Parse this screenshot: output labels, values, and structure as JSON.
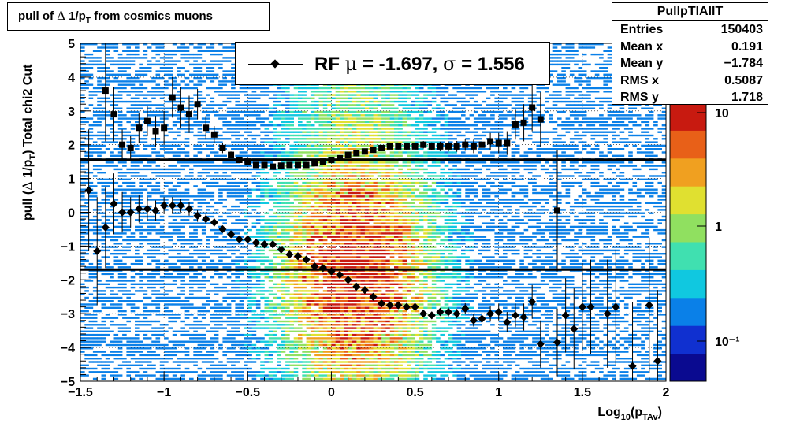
{
  "title": "pull of Δ 1/p_T from cosmics muons",
  "stats": {
    "name": "PullpTIAllT",
    "rows": [
      {
        "label": "Entries",
        "value": "150403"
      },
      {
        "label": "Mean x",
        "value": "0.191"
      },
      {
        "label": "Mean y",
        "value": "−1.784"
      },
      {
        "label": "RMS x",
        "value": "0.5087"
      },
      {
        "label": "RMS y",
        "value": "1.718"
      }
    ]
  },
  "legend": {
    "prefix": "RF",
    "mu_symbol": "μ",
    "mu_text": " = -1.697, ",
    "sigma_symbol": "σ",
    "sigma_text": " =   1.556"
  },
  "colors": {
    "markers": "#000000",
    "palette": [
      "#0a0a90",
      "#1030d0",
      "#0a80e8",
      "#10c8e0",
      "#40e0b0",
      "#90e060",
      "#e0e030",
      "#f0a020",
      "#e86018",
      "#c81a10"
    ]
  },
  "chart_data": {
    "type": "scatter",
    "xlabel": "Log10(pTAv)",
    "ylabel": "pull (Δ 1/pT)  Total chi2 Cut",
    "xlim": [
      -1.5,
      2
    ],
    "ylim": [
      -5,
      5
    ],
    "x_ticks": [
      "−1.5",
      "−1",
      "−0.5",
      "0",
      "0.5",
      "1",
      "1.5",
      "2"
    ],
    "y_ticks": [
      "5",
      "4",
      "3",
      "2",
      "1",
      "0",
      "−1",
      "−2",
      "−3",
      "−4",
      "−5"
    ],
    "grid": true,
    "colorbar_labels": [
      "10",
      "1",
      "10⁻¹"
    ],
    "horizontal_lines": [
      1.556,
      -1.697
    ],
    "series": [
      {
        "marker": "square",
        "x": [
          -1.35,
          -1.3,
          -1.25,
          -1.2,
          -1.15,
          -1.1,
          -1.05,
          -1.0,
          -0.95,
          -0.9,
          -0.85,
          -0.8,
          -0.75,
          -0.7,
          -0.65,
          -0.6,
          -0.55,
          -0.5,
          -0.45,
          -0.4,
          -0.35,
          -0.3,
          -0.25,
          -0.2,
          -0.15,
          -0.1,
          -0.05,
          0.0,
          0.05,
          0.1,
          0.15,
          0.2,
          0.25,
          0.3,
          0.35,
          0.4,
          0.45,
          0.5,
          0.55,
          0.6,
          0.65,
          0.7,
          0.75,
          0.8,
          0.85,
          0.9,
          0.95,
          1.0,
          1.05,
          1.1,
          1.15,
          1.2,
          1.25,
          1.35
        ],
        "y": [
          3.6,
          2.9,
          2.0,
          1.9,
          2.5,
          2.7,
          2.4,
          2.5,
          3.4,
          3.1,
          2.9,
          3.2,
          2.5,
          2.3,
          1.9,
          1.7,
          1.55,
          1.5,
          1.4,
          1.4,
          1.35,
          1.38,
          1.4,
          1.4,
          1.4,
          1.45,
          1.5,
          1.55,
          1.6,
          1.7,
          1.75,
          1.8,
          1.85,
          1.9,
          1.95,
          1.95,
          1.95,
          1.95,
          2.0,
          1.95,
          1.95,
          1.95,
          1.95,
          2.0,
          1.95,
          2.0,
          2.1,
          2.05,
          2.05,
          2.6,
          2.65,
          3.1,
          2.75,
          0.05
        ],
        "yerr": [
          1.5,
          0.8,
          0.45,
          0.35,
          0.45,
          0.45,
          0.45,
          0.5,
          0.6,
          0.6,
          0.55,
          0.45,
          0.35,
          0.25,
          0.15,
          0.1,
          0.06,
          0.05,
          0.05,
          0.05,
          0.05,
          0.05,
          0.05,
          0.05,
          0.05,
          0.05,
          0.05,
          0.05,
          0.05,
          0.06,
          0.06,
          0.06,
          0.07,
          0.08,
          0.08,
          0.09,
          0.1,
          0.1,
          0.11,
          0.12,
          0.14,
          0.15,
          0.16,
          0.18,
          0.2,
          0.22,
          0.25,
          0.3,
          0.35,
          0.45,
          0.55,
          0.7,
          0.8,
          1.8
        ]
      },
      {
        "marker": "diamond",
        "x": [
          -1.45,
          -1.4,
          -1.35,
          -1.3,
          -1.25,
          -1.2,
          -1.15,
          -1.1,
          -1.05,
          -1.0,
          -0.95,
          -0.9,
          -0.85,
          -0.8,
          -0.75,
          -0.7,
          -0.65,
          -0.6,
          -0.55,
          -0.5,
          -0.45,
          -0.4,
          -0.35,
          -0.3,
          -0.25,
          -0.2,
          -0.15,
          -0.1,
          -0.05,
          0.0,
          0.05,
          0.1,
          0.15,
          0.2,
          0.25,
          0.3,
          0.35,
          0.4,
          0.45,
          0.5,
          0.55,
          0.6,
          0.65,
          0.7,
          0.75,
          0.8,
          0.85,
          0.9,
          0.95,
          1.0,
          1.05,
          1.1,
          1.15,
          1.2,
          1.25,
          1.35,
          1.4,
          1.45,
          1.5,
          1.55,
          1.65,
          1.7,
          1.8,
          1.9,
          1.95
        ],
        "y": [
          0.65,
          -1.15,
          -0.45,
          0.25,
          -0.0,
          0.0,
          0.1,
          0.1,
          0.05,
          0.2,
          0.2,
          0.2,
          0.1,
          -0.1,
          -0.2,
          -0.3,
          -0.5,
          -0.65,
          -0.8,
          -0.8,
          -0.9,
          -0.95,
          -0.95,
          -1.1,
          -1.25,
          -1.3,
          -1.4,
          -1.6,
          -1.65,
          -1.75,
          -1.85,
          -2.0,
          -2.2,
          -2.3,
          -2.5,
          -2.7,
          -2.75,
          -2.75,
          -2.8,
          -2.8,
          -3.0,
          -3.05,
          -2.95,
          -2.95,
          -3.0,
          -2.85,
          -3.2,
          -3.15,
          -3.0,
          -2.95,
          -3.25,
          -3.05,
          -3.1,
          -2.65,
          -3.9,
          -3.85,
          -3.05,
          -3.45,
          -2.8,
          -2.8,
          -3.0,
          -2.8,
          -4.55,
          -2.75,
          -4.4
        ],
        "yerr": [
          1.8,
          1.6,
          1.2,
          0.9,
          0.6,
          0.45,
          0.4,
          0.35,
          0.3,
          0.25,
          0.25,
          0.2,
          0.2,
          0.18,
          0.15,
          0.12,
          0.1,
          0.08,
          0.06,
          0.05,
          0.05,
          0.05,
          0.05,
          0.05,
          0.05,
          0.05,
          0.05,
          0.05,
          0.05,
          0.05,
          0.05,
          0.05,
          0.05,
          0.06,
          0.06,
          0.06,
          0.07,
          0.08,
          0.08,
          0.09,
          0.1,
          0.11,
          0.12,
          0.13,
          0.14,
          0.16,
          0.18,
          0.2,
          0.22,
          0.25,
          0.3,
          0.35,
          0.4,
          0.5,
          0.7,
          1.0,
          1.1,
          1.2,
          1.3,
          1.4,
          1.6,
          1.7,
          1.9,
          2.0,
          2.1
        ]
      }
    ]
  }
}
